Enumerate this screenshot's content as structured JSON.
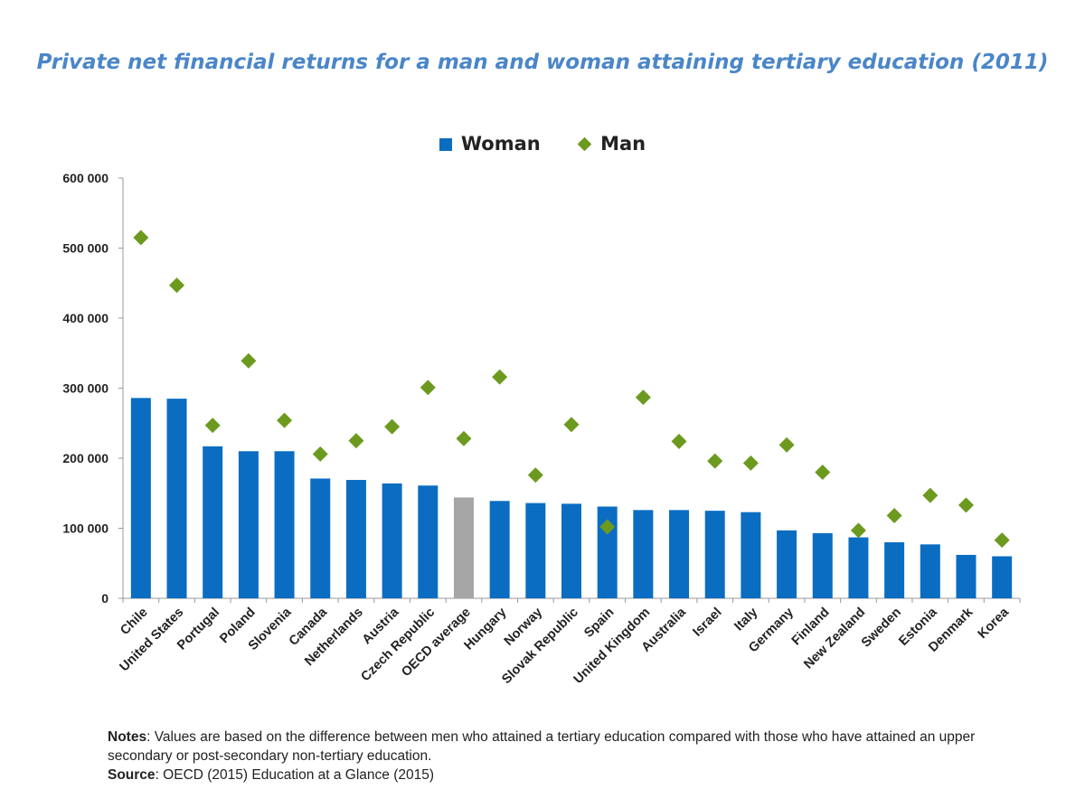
{
  "chart_data": {
    "type": "bar",
    "title": "Private net financial returns for a man and woman attaining tertiary education (2011)",
    "categories": [
      "Chile",
      "United States",
      "Portugal",
      "Poland",
      "Slovenia",
      "Canada",
      "Netherlands",
      "Austria",
      "Czech Republic",
      "OECD average",
      "Hungary",
      "Norway",
      "Slovak Republic",
      "Spain",
      "United Kingdom",
      "Australia",
      "Israel",
      "Italy",
      "Germany",
      "Finland",
      "New Zealand",
      "Sweden",
      "Estonia",
      "Denmark",
      "Korea"
    ],
    "series": [
      {
        "name": "Woman",
        "kind": "bar",
        "color": "#0a6dc2",
        "highlight": {
          "category": "OECD average",
          "color": "#a6a6a6"
        },
        "values": [
          286000,
          285000,
          217000,
          210000,
          210000,
          171000,
          169000,
          164000,
          161000,
          144000,
          139000,
          136000,
          135000,
          131000,
          126000,
          126000,
          125000,
          123000,
          97000,
          93000,
          87000,
          80000,
          77000,
          62000,
          60000
        ]
      },
      {
        "name": "Man",
        "kind": "scatter",
        "marker": "diamond",
        "color": "#6c9a1f",
        "values": [
          515000,
          447000,
          247000,
          339000,
          254000,
          206000,
          225000,
          245000,
          301000,
          228000,
          316000,
          176000,
          248000,
          102000,
          287000,
          224000,
          196000,
          193000,
          219000,
          180000,
          97000,
          118000,
          147000,
          133000,
          83000
        ]
      }
    ],
    "ylim": [
      0,
      600000
    ],
    "yticks": [
      0,
      100000,
      200000,
      300000,
      400000,
      500000,
      600000
    ],
    "ytick_labels": [
      "0",
      "100 000",
      "200 000",
      "300 000",
      "400 000",
      "500 000",
      "600 000"
    ],
    "xlabel": "",
    "ylabel": "",
    "grid": false,
    "legend_position": "top-center"
  },
  "legend": {
    "woman": "Woman",
    "man": "Man"
  },
  "notes": {
    "notes_label": "Notes",
    "notes_text": ": Values are based on the difference between men who attained a tertiary education compared with those who have attained an upper secondary or post-secondary non-tertiary education.",
    "source_label": "Source",
    "source_text": ": OECD (2015) Education at a Glance (2015)"
  }
}
